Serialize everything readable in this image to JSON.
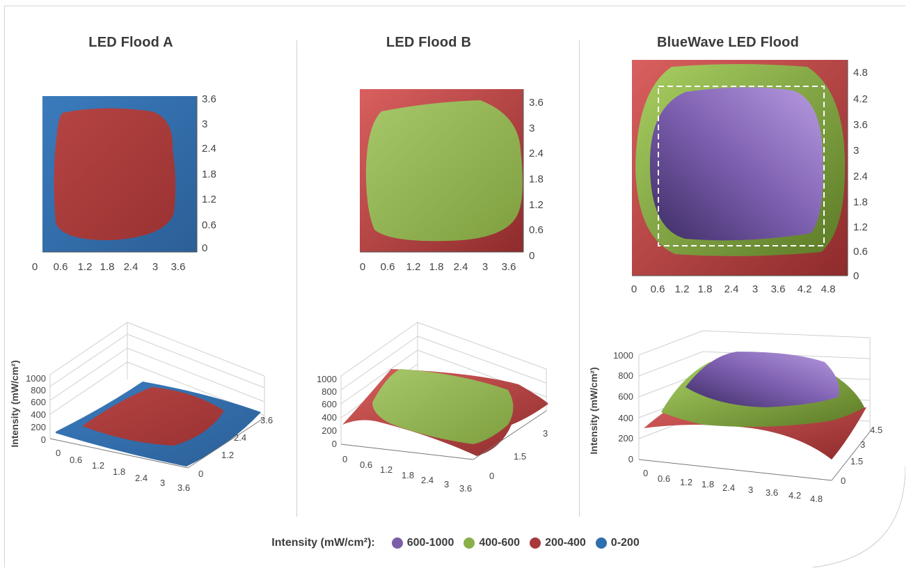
{
  "legend": {
    "title": "Intensity (mW/cm²):",
    "items": [
      {
        "label": "600-1000",
        "color": "#7b5ea7"
      },
      {
        "label": "400-600",
        "color": "#8ab04a"
      },
      {
        "label": "200-400",
        "color": "#a8393a"
      },
      {
        "label": "0-200",
        "color": "#2f6fae"
      }
    ]
  },
  "chart_data": [
    {
      "type": "heatmap",
      "title": "LED Flood A",
      "view": "top",
      "x_ticks": [
        "0",
        "0.6",
        "1.2",
        "1.8",
        "2.4",
        "3",
        "3.6"
      ],
      "y_ticks": [
        "0",
        "0.6",
        "1.2",
        "1.8",
        "2.4",
        "3",
        "3.6"
      ],
      "background_band": "0-200",
      "core_band": "200-400"
    },
    {
      "type": "heatmap",
      "title": "LED Flood B",
      "view": "top",
      "x_ticks": [
        "0",
        "0.6",
        "1.2",
        "1.8",
        "2.4",
        "3",
        "3.6"
      ],
      "y_ticks": [
        "0",
        "0.6",
        "1.2",
        "1.8",
        "2.4",
        "3",
        "3.6"
      ],
      "background_band": "200-400",
      "core_band": "400-600"
    },
    {
      "type": "heatmap",
      "title": "BlueWave LED Flood",
      "view": "top",
      "x_ticks": [
        "0",
        "0.6",
        "1.2",
        "1.8",
        "2.4",
        "3",
        "3.6",
        "4.2",
        "4.8"
      ],
      "y_ticks": [
        "0",
        "0.6",
        "1.2",
        "1.8",
        "2.4",
        "3",
        "3.6",
        "4.2",
        "4.8"
      ],
      "background_band": "200-400",
      "middle_band": "400-600",
      "core_band": "600-1000",
      "dashed_box": true
    },
    {
      "type": "area",
      "view": "3d-surface",
      "zlabel": "Intensity (mW/cm²)",
      "z_ticks": [
        "0",
        "200",
        "400",
        "600",
        "800",
        "1000"
      ],
      "x_ticks": [
        "0",
        "0.6",
        "1.2",
        "1.8",
        "2.4",
        "3",
        "3.6"
      ],
      "y_ticks": [
        "0",
        "1.2",
        "2.4",
        "3.6"
      ],
      "bands": [
        "0-200",
        "200-400"
      ]
    },
    {
      "type": "area",
      "view": "3d-surface",
      "z_ticks": [
        "0",
        "200",
        "400",
        "600",
        "800",
        "1000"
      ],
      "x_ticks": [
        "0",
        "0.6",
        "1.2",
        "1.8",
        "2.4",
        "3",
        "3.6"
      ],
      "y_ticks": [
        "0",
        "1.5",
        "3"
      ],
      "bands": [
        "200-400",
        "400-600"
      ]
    },
    {
      "type": "area",
      "view": "3d-surface",
      "zlabel": "Intensity (mW/cm²)",
      "z_ticks": [
        "0",
        "200",
        "400",
        "600",
        "800",
        "1000"
      ],
      "x_ticks": [
        "0",
        "0.6",
        "1.2",
        "1.8",
        "2.4",
        "3",
        "3.6",
        "4.2",
        "4.8"
      ],
      "y_ticks": [
        "0",
        "1.5",
        "3",
        "4.5"
      ],
      "bands": [
        "200-400",
        "400-600",
        "600-1000"
      ]
    }
  ]
}
